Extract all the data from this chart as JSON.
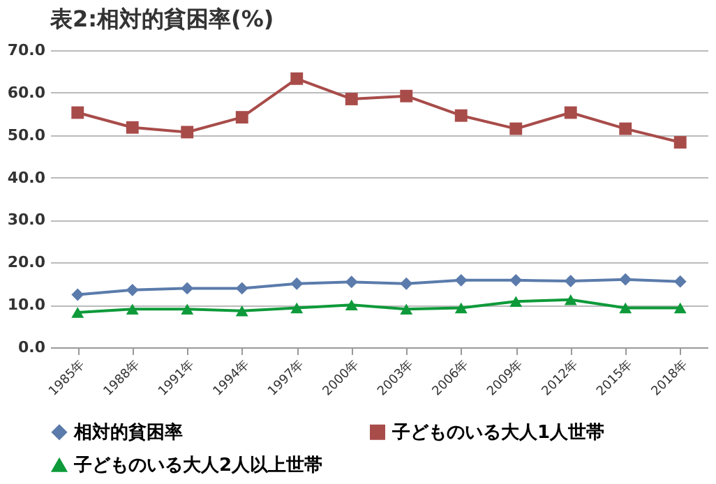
{
  "chart_data": {
    "type": "line",
    "title": "表2:相対的貧困率(%)",
    "categories": [
      "1985年",
      "1988年",
      "1991年",
      "1994年",
      "1997年",
      "2000年",
      "2003年",
      "2006年",
      "2009年",
      "2012年",
      "2015年",
      "2018年"
    ],
    "series": [
      {
        "name": "相対的貧困率",
        "color": "#5a7bab",
        "marker": "diamond",
        "values": [
          12.4,
          13.5,
          13.9,
          13.9,
          15.0,
          15.4,
          15.0,
          15.8,
          15.8,
          15.6,
          16.0,
          15.5
        ]
      },
      {
        "name": "子どものいる大人1人世帯",
        "color": "#a84c4a",
        "marker": "square",
        "values": [
          55.3,
          51.8,
          50.7,
          54.2,
          63.3,
          58.5,
          59.2,
          54.6,
          51.5,
          55.3,
          51.5,
          48.3
        ]
      },
      {
        "name": "子どものいる大人2人以上世帯",
        "color": "#0e9a3a",
        "marker": "triangle",
        "values": [
          8.2,
          9.0,
          9.0,
          8.6,
          9.3,
          10.0,
          9.0,
          9.3,
          10.8,
          11.2,
          9.3,
          9.3
        ]
      }
    ],
    "ylim": [
      0,
      70
    ],
    "yticks": [
      {
        "value": 0,
        "label": "0.0"
      },
      {
        "value": 10,
        "label": "10.0"
      },
      {
        "value": 20,
        "label": "20.0"
      },
      {
        "value": 30,
        "label": "30.0"
      },
      {
        "value": 40,
        "label": "40.0"
      },
      {
        "value": 50,
        "label": "50.0"
      },
      {
        "value": 60,
        "label": "60.0"
      },
      {
        "value": 70,
        "label": "70.0"
      }
    ],
    "grid": "y",
    "legend": "bottom left",
    "line_style": "solid"
  }
}
